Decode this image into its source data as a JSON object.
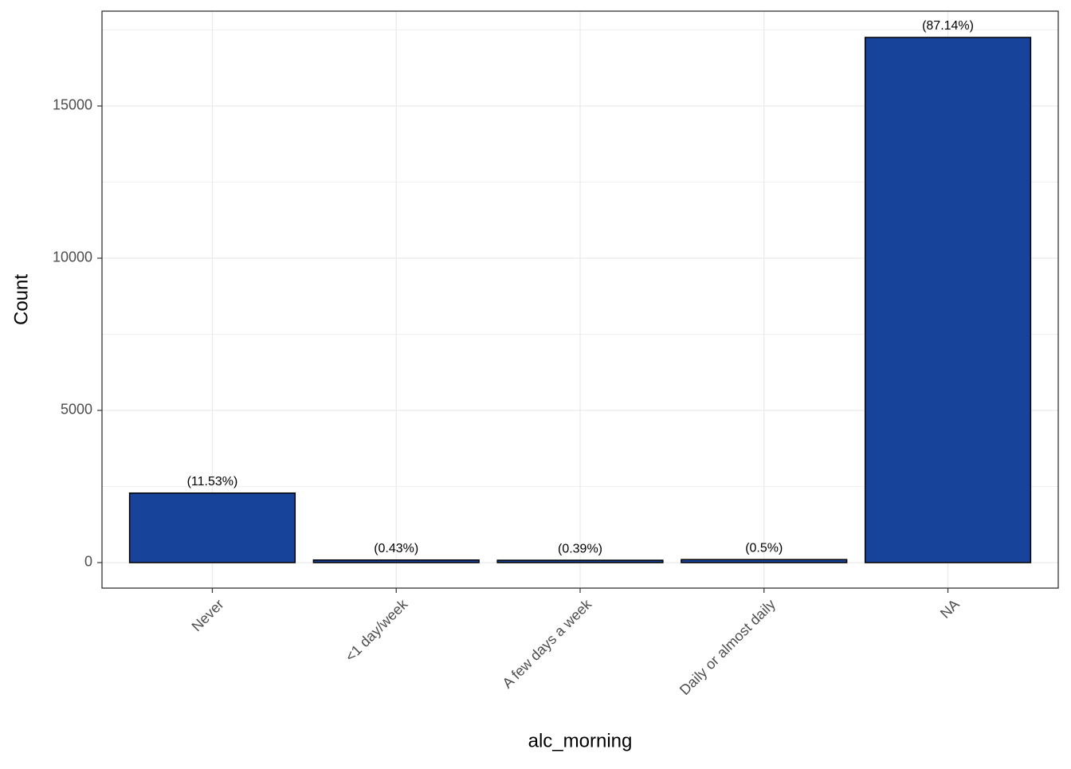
{
  "chart_data": {
    "type": "bar",
    "x_label": "alc_morning",
    "y_label": "Count",
    "categories": [
      "Never",
      "<1 day/week",
      "A few days a week",
      "Daily or almost daily",
      "NA"
    ],
    "values": [
      2283,
      85,
      77,
      99,
      17251
    ],
    "value_labels": [
      "(11.53%)",
      "(0.43%)",
      "(0.39%)",
      "(0.5%)",
      "(87.14%)"
    ],
    "color": "#18439a",
    "ylim": [
      -838,
      18115
    ],
    "yticks": [
      0,
      5000,
      10000,
      15000
    ],
    "grid": true
  }
}
